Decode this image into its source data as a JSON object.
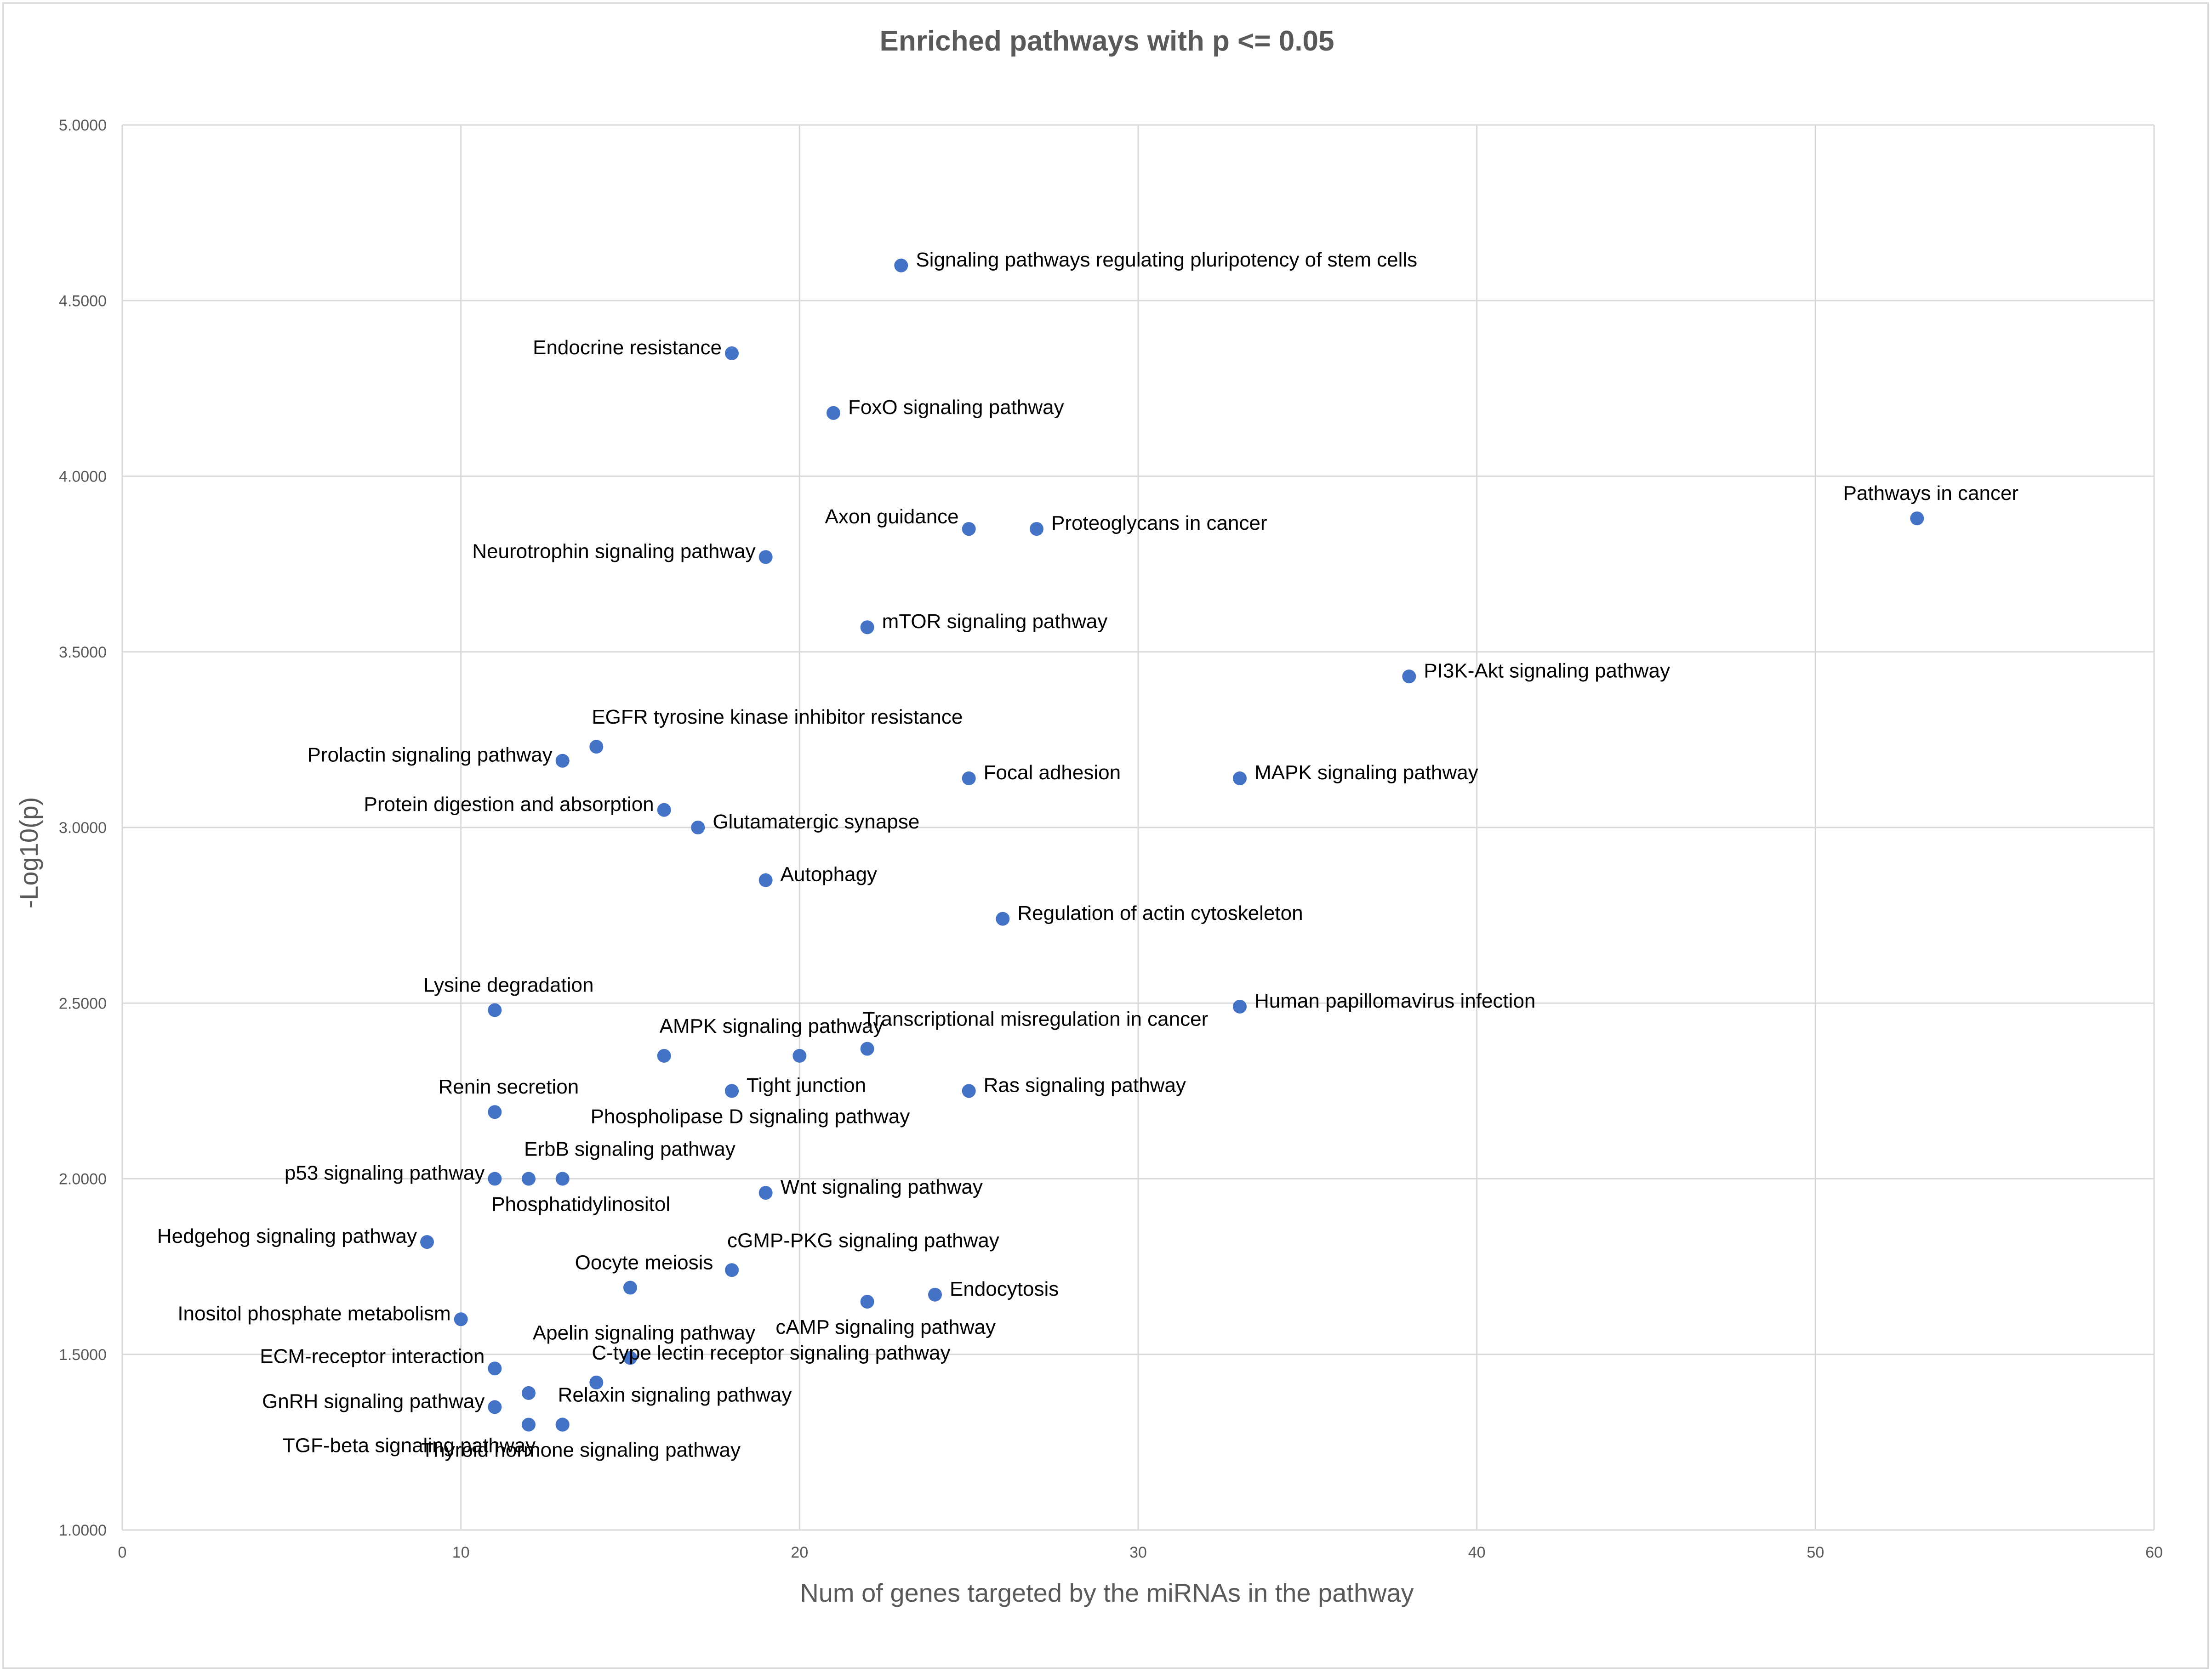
{
  "chart_data": {
    "type": "scatter",
    "title": "Enriched pathways with p <= 0.05",
    "xlabel": "Num of genes targeted by the miRNAs in the pathway",
    "ylabel": "-Log10(p)",
    "xlim": [
      0,
      60
    ],
    "ylim": [
      1.0,
      5.0
    ],
    "x_ticks": [
      "0",
      "10",
      "20",
      "30",
      "40",
      "50",
      "60"
    ],
    "y_ticks": [
      "1.0000",
      "1.5000",
      "2.0000",
      "2.5000",
      "3.0000",
      "3.5000",
      "4.0000",
      "4.5000",
      "5.0000"
    ],
    "grid": true,
    "marker_color": "#4472c4",
    "points": [
      {
        "label": "Signaling pathways regulating pluripotency of stem cells",
        "x": 23,
        "y": 4.6,
        "pos": "right"
      },
      {
        "label": "Endocrine resistance",
        "x": 18,
        "y": 4.35,
        "pos": "left"
      },
      {
        "label": "FoxO signaling pathway",
        "x": 21,
        "y": 4.18,
        "pos": "right"
      },
      {
        "label": "Pathways in cancer",
        "x": 53,
        "y": 3.88,
        "pos": "above"
      },
      {
        "label": "Axon guidance",
        "x": 25,
        "y": 3.85,
        "pos": "left-up"
      },
      {
        "label": "Proteoglycans in cancer",
        "x": 27,
        "y": 3.85,
        "pos": "right"
      },
      {
        "label": "Neurotrophin signaling pathway",
        "x": 19,
        "y": 3.77,
        "pos": "left"
      },
      {
        "label": "mTOR signaling pathway",
        "x": 22,
        "y": 3.57,
        "pos": "right"
      },
      {
        "label": "PI3K-Akt signaling pathway",
        "x": 38,
        "y": 3.43,
        "pos": "right"
      },
      {
        "label": "EGFR tyrosine kinase inhibitor resistance",
        "x": 14,
        "y": 3.23,
        "pos": "right-up"
      },
      {
        "label": "Prolactin signaling pathway",
        "x": 13,
        "y": 3.19,
        "pos": "left"
      },
      {
        "label": "Focal adhesion",
        "x": 25,
        "y": 3.14,
        "pos": "right"
      },
      {
        "label": "MAPK signaling pathway",
        "x": 33,
        "y": 3.14,
        "pos": "right"
      },
      {
        "label": "Protein digestion and absorption",
        "x": 16,
        "y": 3.05,
        "pos": "left"
      },
      {
        "label": "Glutamatergic synapse",
        "x": 17,
        "y": 3.0,
        "pos": "right"
      },
      {
        "label": "Autophagy",
        "x": 19,
        "y": 2.85,
        "pos": "right"
      },
      {
        "label": "Regulation of actin cytoskeleton",
        "x": 26,
        "y": 2.74,
        "pos": "right"
      },
      {
        "label": "Lysine degradation",
        "x": 11,
        "y": 2.48,
        "pos": "above"
      },
      {
        "label": "Human papillomavirus infection",
        "x": 33,
        "y": 2.49,
        "pos": "right"
      },
      {
        "label": "AMPK signaling pathway",
        "x": 16,
        "y": 2.35,
        "pos": "right-up"
      },
      {
        "label": "",
        "x": 20,
        "y": 2.35,
        "pos": "none"
      },
      {
        "label": "Transcriptional misregulation in cancer",
        "x": 22,
        "y": 2.37,
        "pos": "right-up"
      },
      {
        "label": "Tight junction",
        "x": 18,
        "y": 2.25,
        "pos": "right"
      },
      {
        "label": "Phospholipase D signaling pathway",
        "x": 18,
        "y": 2.25,
        "pos": "below"
      },
      {
        "label": "Ras signaling pathway",
        "x": 25,
        "y": 2.25,
        "pos": "right"
      },
      {
        "label": "Renin secretion",
        "x": 11,
        "y": 2.19,
        "pos": "above"
      },
      {
        "label": "p53 signaling pathway",
        "x": 11,
        "y": 2.0,
        "pos": "left"
      },
      {
        "label": "ErbB signaling pathway",
        "x": 12,
        "y": 2.0,
        "pos": "right-up"
      },
      {
        "label": "Phosphatidylinositol",
        "x": 13,
        "y": 2.0,
        "pos": "below"
      },
      {
        "label": "Wnt signaling pathway",
        "x": 19,
        "y": 1.96,
        "pos": "right"
      },
      {
        "label": "Hedgehog signaling pathway",
        "x": 9,
        "y": 1.82,
        "pos": "left"
      },
      {
        "label": "Oocyte meiosis",
        "x": 15,
        "y": 1.69,
        "pos": "above"
      },
      {
        "label": "cGMP-PKG signaling pathway",
        "x": 18,
        "y": 1.74,
        "pos": "right-up"
      },
      {
        "label": "cAMP signaling pathway",
        "x": 22,
        "y": 1.65,
        "pos": "below"
      },
      {
        "label": "Endocytosis",
        "x": 24,
        "y": 1.67,
        "pos": "right"
      },
      {
        "label": "Inositol phosphate metabolism",
        "x": 10,
        "y": 1.6,
        "pos": "left"
      },
      {
        "label": "Apelin signaling pathway",
        "x": 15,
        "y": 1.49,
        "pos": "above"
      },
      {
        "label": "ECM-receptor interaction",
        "x": 11,
        "y": 1.46,
        "pos": "left-up"
      },
      {
        "label": "C-type lectin receptor signaling pathway",
        "x": 14,
        "y": 1.42,
        "pos": "right-up"
      },
      {
        "label": "",
        "x": 12,
        "y": 1.39,
        "pos": "none"
      },
      {
        "label": "GnRH signaling pathway",
        "x": 11,
        "y": 1.35,
        "pos": "left"
      },
      {
        "label": "Relaxin signaling pathway",
        "x": 13,
        "y": 1.3,
        "pos": "right-up"
      },
      {
        "label": "TGF-beta signaling pathway",
        "x": 12,
        "y": 1.3,
        "pos": "below-left"
      },
      {
        "label": "Thyroid hormone signaling pathway",
        "x": 13,
        "y": 1.3,
        "pos": "below"
      }
    ]
  }
}
